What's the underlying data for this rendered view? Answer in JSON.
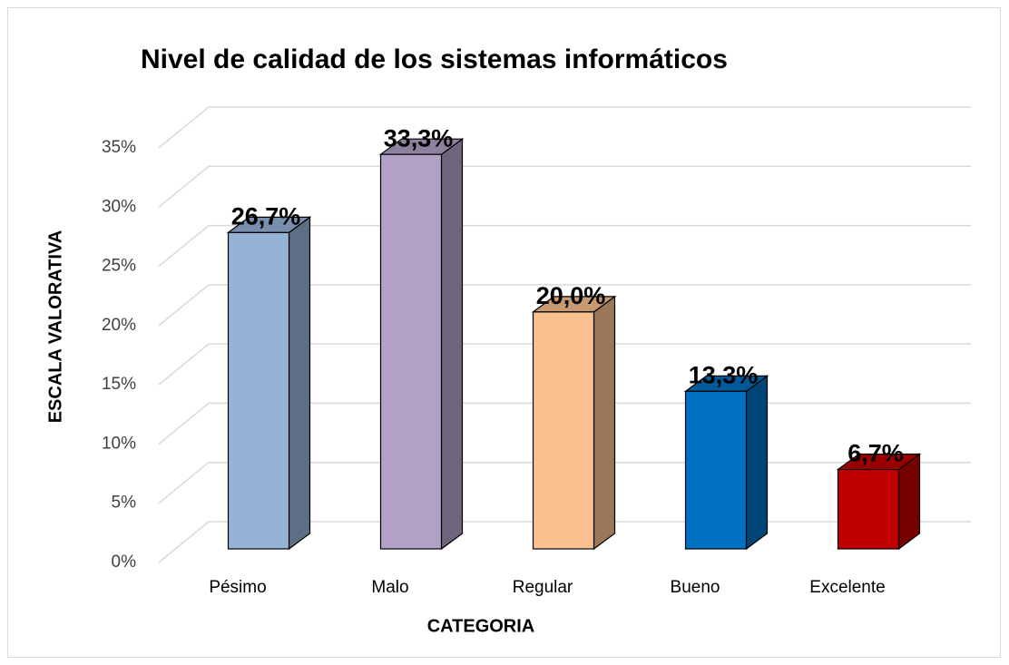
{
  "chart_data": {
    "type": "bar3d",
    "title": "Nivel de calidad de los sistemas informáticos",
    "x_label": "CATEGORIA",
    "y_label": "ESCALA  VALORATIVA",
    "categories": [
      "Pésimo",
      "Malo",
      "Regular",
      "Bueno",
      "Excelente"
    ],
    "values": [
      26.7,
      33.3,
      20.0,
      13.3,
      6.7
    ],
    "value_labels": [
      "26,7%",
      "33,3%",
      "20,0%",
      "13,3%",
      "6,7%"
    ],
    "colors": [
      "#95b3d7",
      "#b2a1c7",
      "#fac090",
      "#0070c0",
      "#c00000"
    ],
    "ylim": [
      0,
      35
    ],
    "yticks": [
      {
        "value": 0,
        "label": "0%"
      },
      {
        "value": 5,
        "label": "5%"
      },
      {
        "value": 10,
        "label": "10%"
      },
      {
        "value": 15,
        "label": "15%"
      },
      {
        "value": 20,
        "label": "20%"
      },
      {
        "value": 25,
        "label": "25%"
      },
      {
        "value": 30,
        "label": "30%"
      },
      {
        "value": 35,
        "label": "35%"
      }
    ],
    "grid": true
  }
}
